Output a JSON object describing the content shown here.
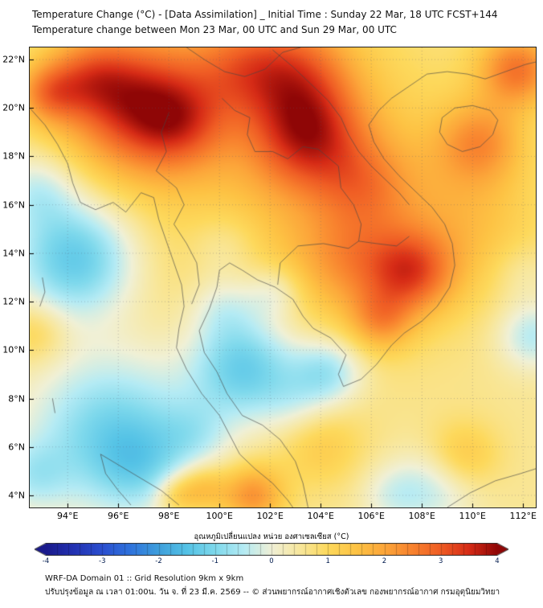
{
  "header": {
    "title_line1": "Temperature Change (°C) - [Data Assimilation] _ Initial Time : Sunday 22 Mar, 18 UTC FCST+144",
    "title_line2": "Temperature change between Mon 23 Mar, 00 UTC and Sun 29 Mar, 00 UTC"
  },
  "map": {
    "lon_min": 92.5,
    "lon_max": 112.5,
    "lat_min": 3.5,
    "lat_max": 22.5,
    "x_ticks": [
      {
        "value": 94,
        "label": "94°E"
      },
      {
        "value": 96,
        "label": "96°E"
      },
      {
        "value": 98,
        "label": "98°E"
      },
      {
        "value": 100,
        "label": "100°E"
      },
      {
        "value": 102,
        "label": "102°E"
      },
      {
        "value": 104,
        "label": "104°E"
      },
      {
        "value": 106,
        "label": "106°E"
      },
      {
        "value": 108,
        "label": "108°E"
      },
      {
        "value": 110,
        "label": "110°E"
      },
      {
        "value": 112,
        "label": "112°E"
      }
    ],
    "y_ticks": [
      {
        "value": 4,
        "label": "4°N"
      },
      {
        "value": 6,
        "label": "6°N"
      },
      {
        "value": 8,
        "label": "8°N"
      },
      {
        "value": 10,
        "label": "10°N"
      },
      {
        "value": 12,
        "label": "12°N"
      },
      {
        "value": 14,
        "label": "14°N"
      },
      {
        "value": 16,
        "label": "16°N"
      },
      {
        "value": 18,
        "label": "18°N"
      },
      {
        "value": 20,
        "label": "20°N"
      },
      {
        "value": 22,
        "label": "22°N"
      }
    ],
    "outlines": [
      [
        [
          92.5,
          20.0
        ],
        [
          93.1,
          19.3
        ],
        [
          93.6,
          18.5
        ],
        [
          94.0,
          17.7
        ],
        [
          94.2,
          16.9
        ],
        [
          94.5,
          16.1
        ],
        [
          95.1,
          15.8
        ],
        [
          95.8,
          16.1
        ],
        [
          96.3,
          15.7
        ],
        [
          96.9,
          16.5
        ],
        [
          97.4,
          16.3
        ],
        [
          97.6,
          15.4
        ],
        [
          97.9,
          14.5
        ],
        [
          98.2,
          13.6
        ],
        [
          98.5,
          12.7
        ],
        [
          98.6,
          11.8
        ],
        [
          98.4,
          10.9
        ],
        [
          98.3,
          10.1
        ],
        [
          98.7,
          9.2
        ],
        [
          99.3,
          8.2
        ],
        [
          100.0,
          7.3
        ],
        [
          100.4,
          6.5
        ],
        [
          100.8,
          5.7
        ],
        [
          101.4,
          5.1
        ],
        [
          102.1,
          4.5
        ],
        [
          102.7,
          3.8
        ],
        [
          102.9,
          3.5
        ]
      ],
      [
        [
          103.5,
          3.5
        ],
        [
          103.3,
          4.5
        ],
        [
          103.0,
          5.4
        ],
        [
          102.4,
          6.3
        ],
        [
          101.7,
          6.9
        ],
        [
          100.9,
          7.3
        ],
        [
          100.3,
          8.2
        ],
        [
          99.9,
          9.1
        ],
        [
          99.4,
          9.9
        ],
        [
          99.2,
          10.8
        ],
        [
          99.6,
          11.7
        ],
        [
          99.9,
          12.6
        ],
        [
          100.0,
          13.3
        ],
        [
          100.4,
          13.6
        ],
        [
          100.9,
          13.3
        ],
        [
          101.5,
          12.9
        ],
        [
          102.2,
          12.6
        ],
        [
          102.9,
          12.1
        ],
        [
          103.3,
          11.4
        ],
        [
          103.7,
          10.9
        ],
        [
          104.4,
          10.5
        ],
        [
          105.0,
          9.8
        ],
        [
          104.7,
          9.0
        ],
        [
          104.9,
          8.5
        ],
        [
          105.6,
          8.8
        ],
        [
          106.2,
          9.4
        ],
        [
          106.8,
          10.2
        ],
        [
          107.3,
          10.7
        ],
        [
          108.0,
          11.2
        ],
        [
          108.6,
          11.8
        ],
        [
          109.1,
          12.6
        ],
        [
          109.3,
          13.5
        ],
        [
          109.2,
          14.4
        ],
        [
          108.9,
          15.2
        ],
        [
          108.4,
          15.9
        ],
        [
          107.8,
          16.5
        ],
        [
          107.1,
          17.2
        ],
        [
          106.5,
          17.9
        ],
        [
          106.1,
          18.6
        ],
        [
          105.9,
          19.3
        ],
        [
          106.3,
          19.9
        ],
        [
          106.8,
          20.4
        ],
        [
          107.5,
          20.9
        ],
        [
          108.2,
          21.4
        ],
        [
          109.0,
          21.5
        ],
        [
          109.8,
          21.4
        ],
        [
          110.5,
          21.2
        ],
        [
          111.3,
          21.5
        ],
        [
          112.1,
          21.8
        ],
        [
          112.5,
          21.9
        ]
      ],
      [
        [
          110.0,
          20.1
        ],
        [
          110.7,
          19.9
        ],
        [
          111.0,
          19.5
        ],
        [
          110.8,
          18.9
        ],
        [
          110.3,
          18.4
        ],
        [
          109.6,
          18.2
        ],
        [
          109.0,
          18.5
        ],
        [
          108.7,
          19.0
        ],
        [
          108.8,
          19.6
        ],
        [
          109.3,
          20.0
        ],
        [
          110.0,
          20.1
        ]
      ],
      [
        [
          98.0,
          19.8
        ],
        [
          97.7,
          19.0
        ],
        [
          97.9,
          18.2
        ],
        [
          97.5,
          17.4
        ],
        [
          98.3,
          16.7
        ],
        [
          98.6,
          16.0
        ],
        [
          98.2,
          15.2
        ],
        [
          98.7,
          14.4
        ],
        [
          99.1,
          13.6
        ],
        [
          99.2,
          12.7
        ],
        [
          98.9,
          11.9
        ]
      ],
      [
        [
          100.1,
          20.4
        ],
        [
          100.6,
          19.9
        ],
        [
          101.2,
          19.6
        ],
        [
          101.1,
          18.9
        ],
        [
          101.4,
          18.2
        ],
        [
          102.1,
          18.2
        ],
        [
          102.7,
          17.9
        ],
        [
          103.3,
          18.4
        ],
        [
          103.9,
          18.3
        ],
        [
          104.7,
          17.6
        ],
        [
          104.8,
          16.7
        ],
        [
          105.3,
          16.0
        ],
        [
          105.6,
          15.2
        ],
        [
          105.5,
          14.5
        ]
      ],
      [
        [
          102.3,
          12.7
        ],
        [
          102.4,
          13.6
        ],
        [
          103.1,
          14.3
        ],
        [
          104.1,
          14.4
        ],
        [
          105.1,
          14.2
        ],
        [
          105.5,
          14.5
        ],
        [
          106.2,
          14.4
        ],
        [
          107.0,
          14.3
        ],
        [
          107.5,
          14.7
        ]
      ],
      [
        [
          102.1,
          22.4
        ],
        [
          102.9,
          21.7
        ],
        [
          103.6,
          21.0
        ],
        [
          104.3,
          20.3
        ],
        [
          104.8,
          19.6
        ],
        [
          105.1,
          18.9
        ],
        [
          105.5,
          18.2
        ],
        [
          106.0,
          17.6
        ],
        [
          106.6,
          17.0
        ],
        [
          107.1,
          16.5
        ],
        [
          107.5,
          16.0
        ]
      ],
      [
        [
          98.7,
          22.5
        ],
        [
          99.4,
          22.0
        ],
        [
          100.2,
          21.5
        ],
        [
          101.0,
          21.3
        ],
        [
          101.8,
          21.6
        ],
        [
          102.5,
          22.3
        ],
        [
          103.2,
          22.5
        ]
      ],
      [
        [
          95.3,
          5.7
        ],
        [
          96.1,
          5.2
        ],
        [
          96.9,
          4.7
        ],
        [
          97.7,
          4.2
        ],
        [
          98.4,
          3.6
        ]
      ],
      [
        [
          95.3,
          5.7
        ],
        [
          95.5,
          4.9
        ],
        [
          96.0,
          4.2
        ],
        [
          96.5,
          3.6
        ]
      ],
      [
        [
          109.0,
          3.5
        ],
        [
          109.9,
          4.1
        ],
        [
          110.9,
          4.6
        ],
        [
          111.9,
          4.9
        ],
        [
          112.5,
          5.1
        ]
      ],
      [
        [
          93.0,
          13.0
        ],
        [
          93.1,
          12.4
        ],
        [
          92.9,
          11.8
        ]
      ],
      [
        [
          93.4,
          8.0
        ],
        [
          93.5,
          7.4
        ]
      ]
    ]
  },
  "chart_data": {
    "type": "heatmap",
    "title": "Temperature Change (°C)",
    "units": "°C",
    "value_range": [
      -4,
      4
    ],
    "base": 0.55,
    "blobs": [
      [
        96.8,
        20.2,
        2.0,
        2.6
      ],
      [
        98.5,
        19.3,
        1.3,
        1.0
      ],
      [
        94.8,
        21.3,
        1.2,
        1.2
      ],
      [
        93.2,
        20.6,
        0.9,
        1.4
      ],
      [
        103.5,
        18.8,
        1.6,
        2.1
      ],
      [
        103.0,
        21.5,
        1.6,
        1.6
      ],
      [
        100.8,
        21.8,
        1.4,
        1.1
      ],
      [
        111.8,
        21.6,
        1.1,
        2.0
      ],
      [
        110.3,
        18.6,
        1.2,
        1.4
      ],
      [
        107.6,
        13.2,
        1.2,
        1.9
      ],
      [
        105.2,
        13.7,
        1.5,
        1.0
      ],
      [
        106.4,
        11.2,
        0.9,
        1.2
      ],
      [
        105.8,
        16.8,
        1.3,
        0.9
      ],
      [
        101.3,
        4.0,
        0.9,
        1.7
      ],
      [
        99.3,
        4.3,
        0.7,
        1.1
      ],
      [
        98.3,
        4.0,
        0.6,
        0.9
      ],
      [
        110.0,
        15.3,
        2.0,
        0.6
      ],
      [
        104.0,
        6.0,
        1.2,
        0.7
      ],
      [
        102.0,
        18.0,
        5.0,
        0.75
      ],
      [
        106.5,
        15.5,
        3.5,
        0.45
      ],
      [
        92.7,
        10.7,
        0.9,
        0.7
      ],
      [
        109.6,
        5.6,
        1.0,
        0.9
      ],
      [
        94.3,
        13.8,
        1.7,
        -2.0
      ],
      [
        92.8,
        16.6,
        1.1,
        -0.9
      ],
      [
        95.8,
        6.6,
        2.3,
        -1.7
      ],
      [
        96.8,
        5.2,
        1.2,
        -0.7
      ],
      [
        101.0,
        9.3,
        1.5,
        -1.9
      ],
      [
        100.2,
        11.8,
        1.0,
        -0.8
      ],
      [
        102.2,
        12.4,
        0.8,
        -0.8
      ],
      [
        104.3,
        9.1,
        1.0,
        -1.3
      ],
      [
        100.2,
        14.3,
        1.0,
        -0.55
      ],
      [
        108.5,
        4.3,
        1.2,
        -0.9
      ],
      [
        112.4,
        10.6,
        1.0,
        -1.1
      ],
      [
        112.0,
        13.2,
        0.9,
        -0.4
      ],
      [
        92.6,
        4.8,
        1.0,
        -0.8
      ],
      [
        106.8,
        4.0,
        0.9,
        -0.6
      ],
      [
        99.0,
        6.5,
        1.0,
        -0.6
      ],
      [
        103.0,
        7.8,
        1.0,
        -0.5
      ]
    ]
  },
  "colorbar": {
    "title": "อุณหภูมิเปลี่ยนแปลง หน่วย องศาเซลเซียส (°C)",
    "ticks": [
      {
        "value": -4,
        "label": "-4"
      },
      {
        "value": -3,
        "label": "-3"
      },
      {
        "value": -2,
        "label": "-2"
      },
      {
        "value": -1,
        "label": "-1"
      },
      {
        "value": 0,
        "label": "0"
      },
      {
        "value": 1,
        "label": "1"
      },
      {
        "value": 2,
        "label": "2"
      },
      {
        "value": 3,
        "label": "3"
      },
      {
        "value": 4,
        "label": "4"
      }
    ],
    "stops": [
      [
        -4.0,
        "#1a1a8c"
      ],
      [
        -3.5,
        "#2333b4"
      ],
      [
        -3.0,
        "#2b50d0"
      ],
      [
        -2.5,
        "#2f74dd"
      ],
      [
        -2.0,
        "#3fa0dc"
      ],
      [
        -1.5,
        "#55c3e6"
      ],
      [
        -1.0,
        "#7fd9ec"
      ],
      [
        -0.5,
        "#b5ebf4"
      ],
      [
        0.0,
        "#f0f0d6"
      ],
      [
        0.5,
        "#f8e79c"
      ],
      [
        1.0,
        "#fdd95c"
      ],
      [
        1.5,
        "#fdc344"
      ],
      [
        2.0,
        "#fca63a"
      ],
      [
        2.5,
        "#f8822e"
      ],
      [
        3.0,
        "#ef5c24"
      ],
      [
        3.5,
        "#d62b16"
      ],
      [
        4.0,
        "#8f0606"
      ]
    ]
  },
  "footer": {
    "line1": "WRF-DA Domain 01 :: Grid Resolution 9km x 9km",
    "line2": "ปรับปรุงข้อมูล ณ เวลา 01:00น. วัน จ. ที่ 23 มี.ค. 2569 -- © ส่วนพยากรณ์อากาศเชิงตัวเลข กองพยากรณ์อากาศ กรมอุตุนิยมวิทยา"
  }
}
